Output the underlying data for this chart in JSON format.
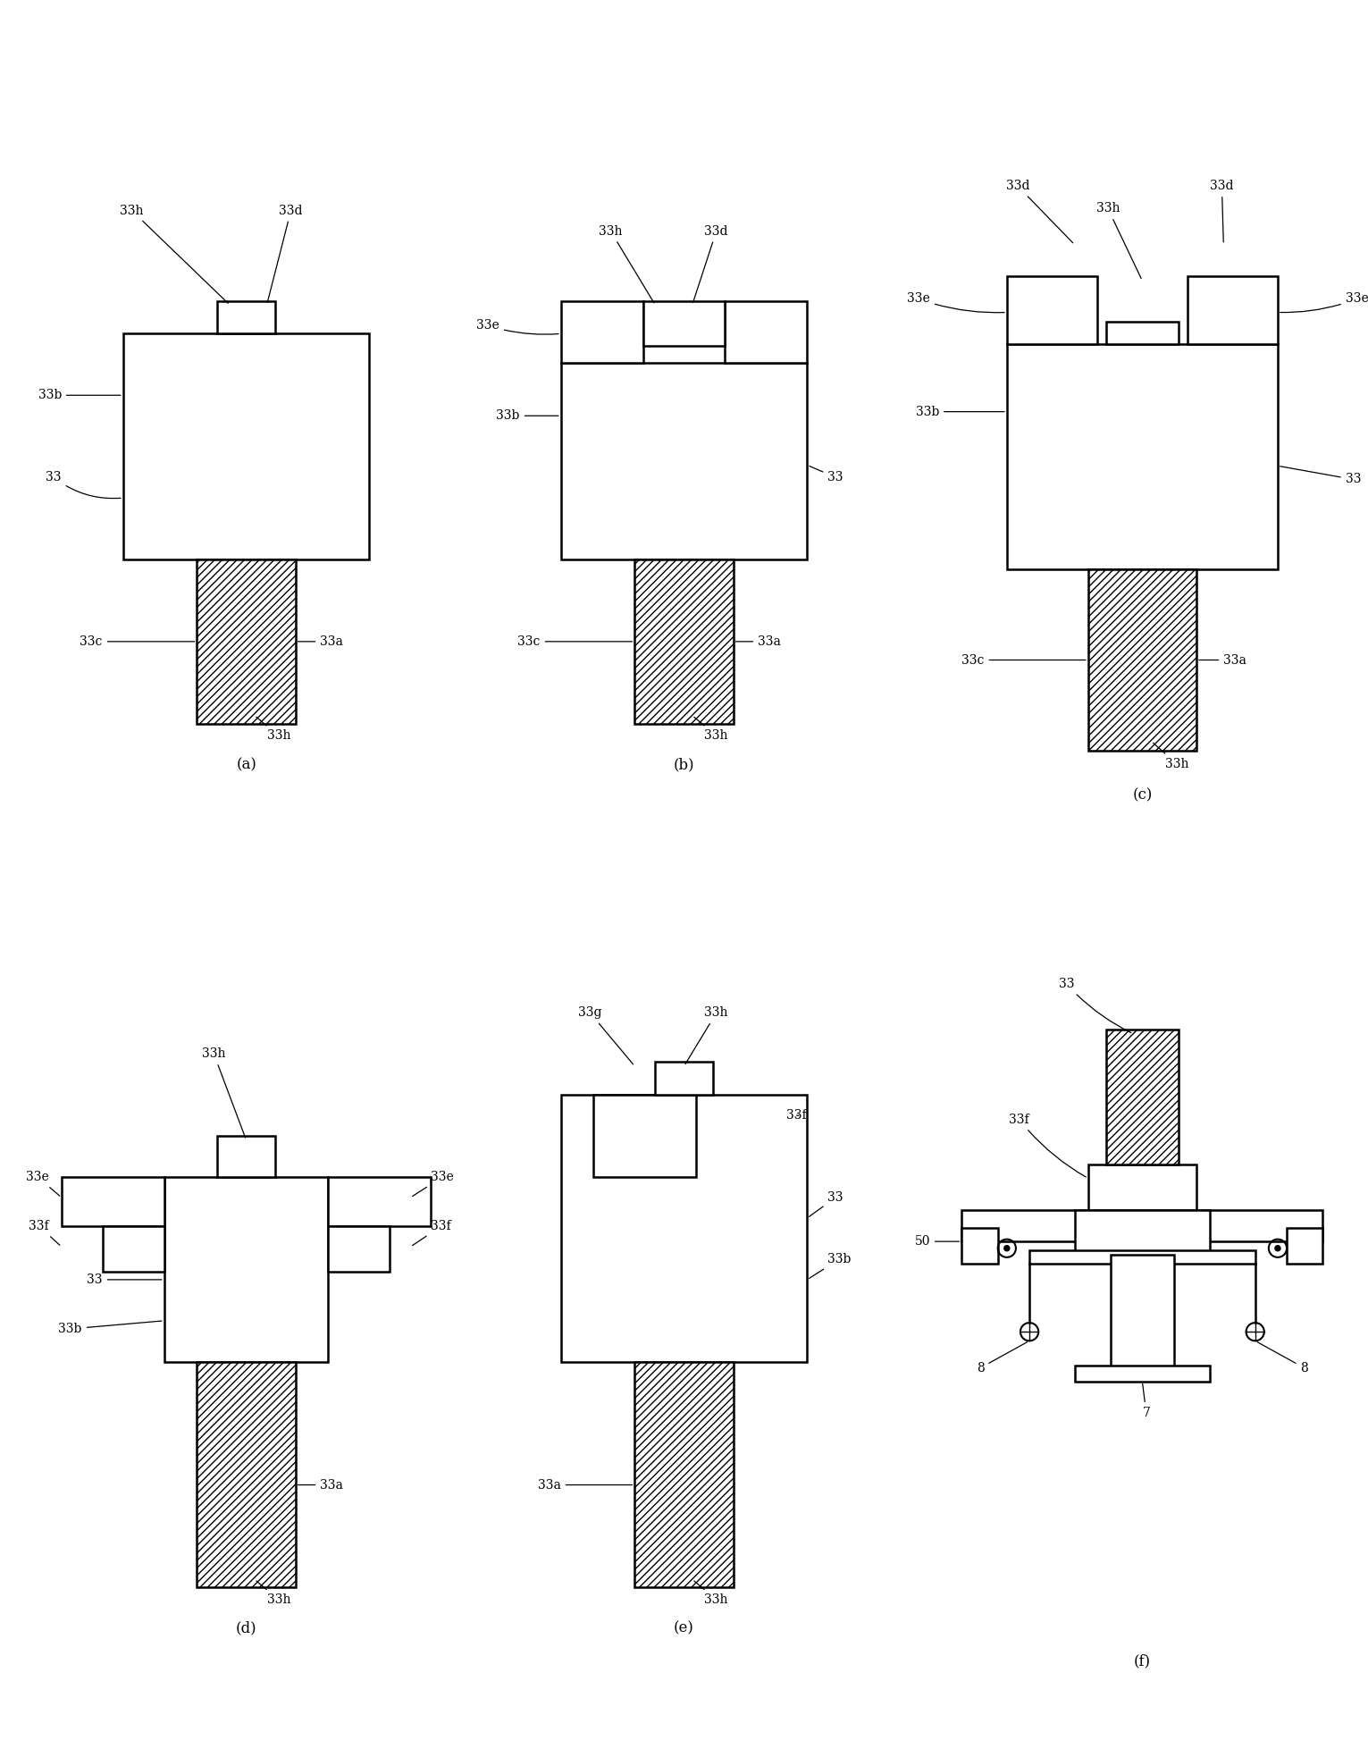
{
  "fig_width": 15.31,
  "fig_height": 19.66,
  "bg_color": "#ffffff",
  "label_fontsize": 10,
  "caption_fontsize": 12,
  "captions": [
    "(a)",
    "(b)",
    "(c)",
    "(d)",
    "(e)",
    "(f)"
  ]
}
